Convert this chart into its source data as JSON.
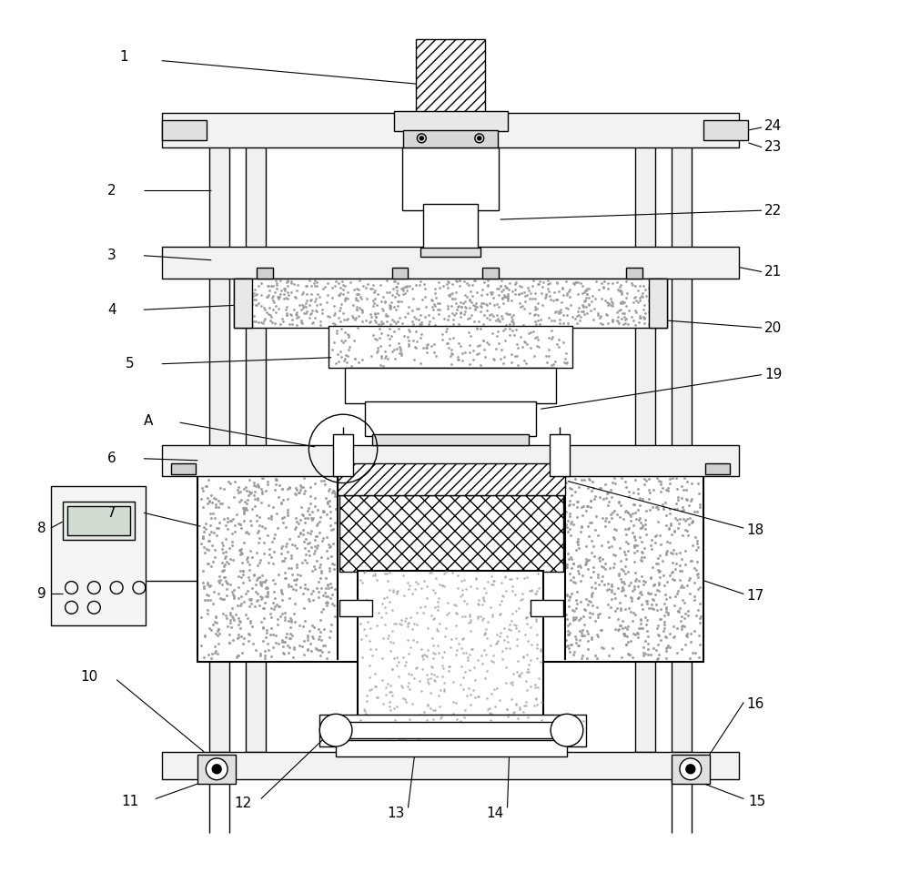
{
  "bg_color": "#ffffff",
  "lw": 1.0,
  "tlw": 1.5,
  "anno_lw": 0.8,
  "fig_width": 10.0,
  "fig_height": 9.59
}
